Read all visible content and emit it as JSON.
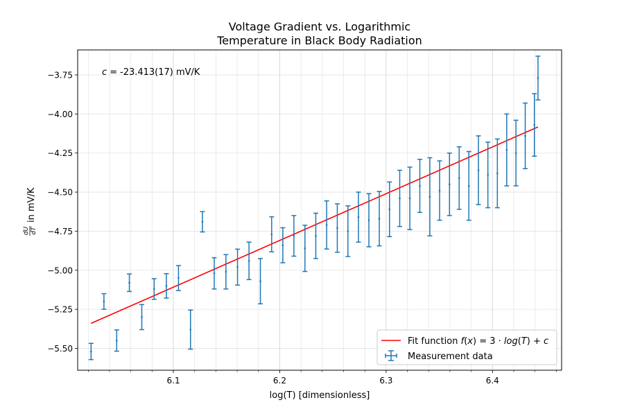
{
  "chart_data": {
    "type": "scatter",
    "title_line1": "Voltage Gradient vs. Logarithmic",
    "title_line2": "Temperature in Black Body Radiation",
    "xlabel": "log(T) [dimensionless]",
    "ylabel_suffix": "in mV/K",
    "annotation_value": "-23.413(17) mV/K",
    "xlim": [
      6.01,
      6.465
    ],
    "ylim": [
      -5.64,
      -3.59
    ],
    "x_ticks": [
      6.1,
      6.2,
      6.3,
      6.4
    ],
    "x_tick_labels": [
      "6.1",
      "6.2",
      "6.3",
      "6.4"
    ],
    "y_ticks": [
      -5.5,
      -5.25,
      -5.0,
      -4.75,
      -4.5,
      -4.25,
      -4.0,
      -3.75
    ],
    "y_tick_labels": [
      "−5.50",
      "−5.25",
      "−5.00",
      "−4.75",
      "−4.50",
      "−4.25",
      "−4.00",
      "−3.75"
    ],
    "grid": true,
    "legend_position": "lower-right",
    "legend": {
      "fit_label": "Fit function",
      "data_label": "Measurement data"
    },
    "colors": {
      "fit": "#ff0000",
      "data": "#1f77b4"
    },
    "fit": {
      "x_start": 6.0226,
      "x_end": 6.4428,
      "y_start": -5.34,
      "y_end": -4.083
    },
    "series": [
      {
        "x": [
          6.0226,
          6.0347,
          6.0467,
          6.0586,
          6.0703,
          6.0819,
          6.0934,
          6.1048,
          6.1161,
          6.1273,
          6.1384,
          6.1494,
          6.1603,
          6.1711,
          6.1818,
          6.1924,
          6.2029,
          6.2133,
          6.2237,
          6.2339,
          6.2441,
          6.2541,
          6.2641,
          6.274,
          6.2838,
          6.2936,
          6.3032,
          6.3128,
          6.3223,
          6.3317,
          6.3411,
          6.3503,
          6.3596,
          6.3687,
          6.3778,
          6.3868,
          6.3957,
          6.4046,
          6.4134,
          6.4221,
          6.4308,
          6.4394,
          6.4428
        ],
        "y": [
          -5.52,
          -5.2,
          -5.45,
          -5.08,
          -5.3,
          -5.12,
          -5.1,
          -5.05,
          -5.38,
          -4.69,
          -5.02,
          -5.01,
          -4.98,
          -4.94,
          -5.07,
          -4.77,
          -4.84,
          -4.78,
          -4.86,
          -4.78,
          -4.71,
          -4.73,
          -4.75,
          -4.66,
          -4.68,
          -4.67,
          -4.61,
          -4.54,
          -4.54,
          -4.46,
          -4.53,
          -4.49,
          -4.45,
          -4.41,
          -4.46,
          -4.36,
          -4.39,
          -4.38,
          -4.23,
          -4.25,
          -4.14,
          -4.07,
          -3.77
        ],
        "yerr": [
          0.052,
          0.05,
          0.068,
          0.056,
          0.08,
          0.066,
          0.078,
          0.08,
          0.125,
          0.065,
          0.1,
          0.11,
          0.115,
          0.12,
          0.145,
          0.112,
          0.112,
          0.13,
          0.148,
          0.145,
          0.154,
          0.155,
          0.162,
          0.16,
          0.17,
          0.174,
          0.175,
          0.18,
          0.2,
          0.17,
          0.25,
          0.19,
          0.2,
          0.2,
          0.22,
          0.22,
          0.21,
          0.22,
          0.23,
          0.21,
          0.21,
          0.2,
          0.14
        ]
      }
    ]
  }
}
